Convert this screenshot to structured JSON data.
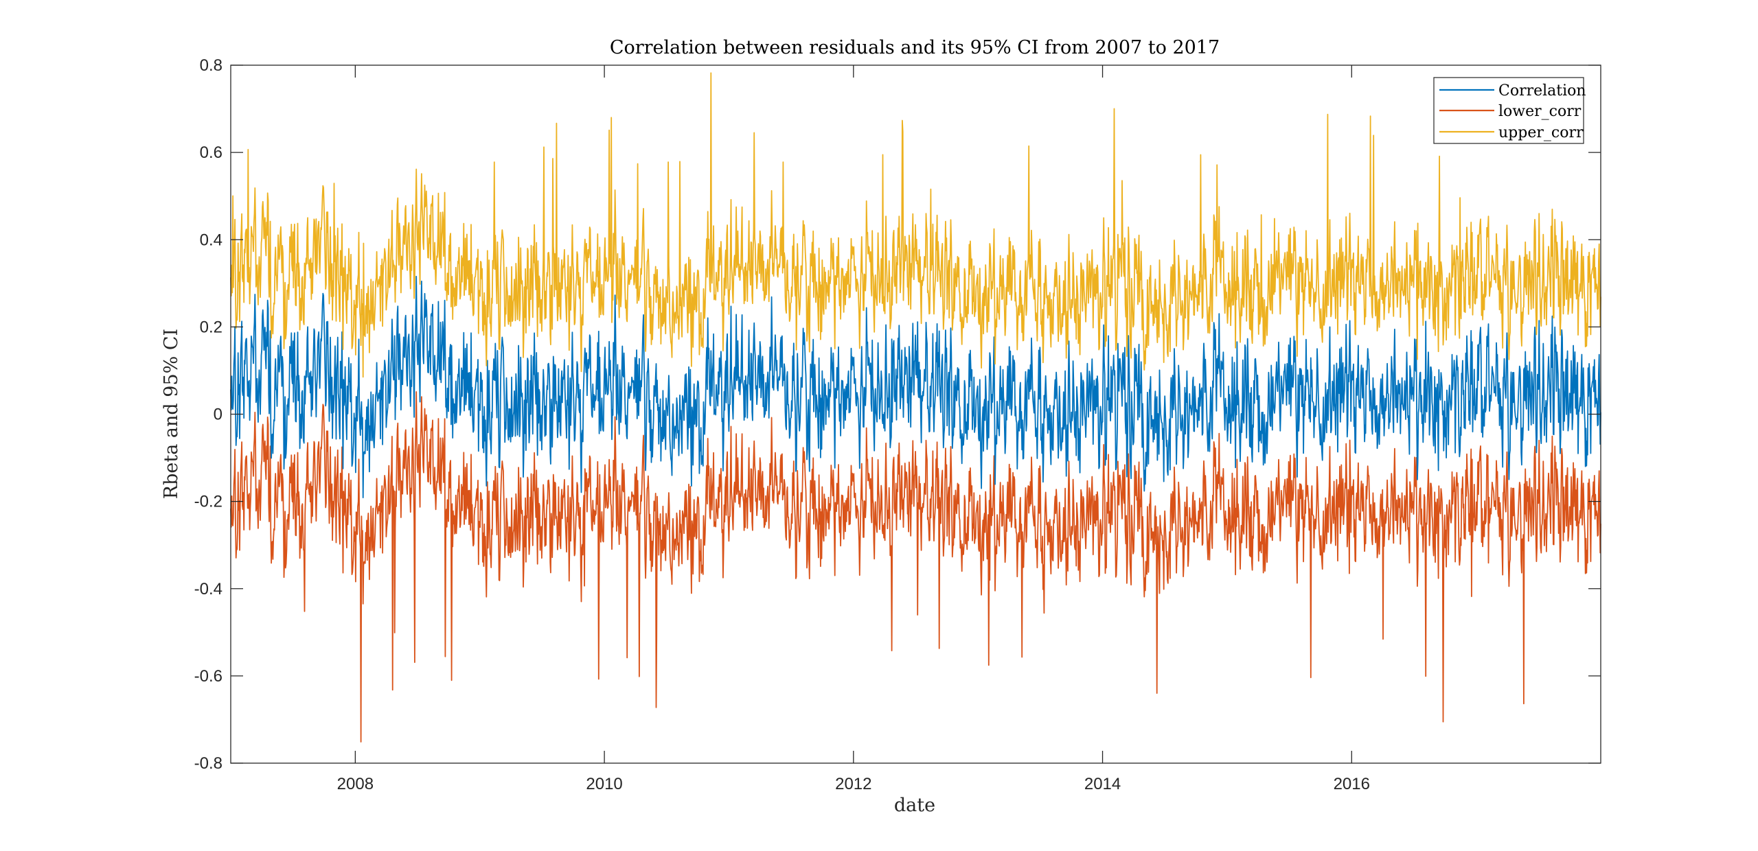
{
  "chart_data": {
    "type": "line",
    "title": "Correlation between residuals and its 95% CI from 2007 to 2017",
    "xlabel": "date",
    "ylabel": "Rbeta and 95% CI",
    "xlim": [
      2007.0,
      2018.0
    ],
    "ylim": [
      -0.8,
      0.8
    ],
    "xticks": [
      2008,
      2010,
      2012,
      2014,
      2016
    ],
    "xtick_labels": [
      "2008",
      "2010",
      "2012",
      "2014",
      "2016"
    ],
    "yticks": [
      -0.8,
      -0.6,
      -0.4,
      -0.2,
      0,
      0.2,
      0.4,
      0.6,
      0.8
    ],
    "ytick_labels": [
      "-0.8",
      "-0.6",
      "-0.4",
      "-0.2",
      "0",
      "0.2",
      "0.4",
      "0.6",
      "0.8"
    ],
    "grid": false,
    "legend_position": "top-right",
    "series": [
      {
        "name": "Correlation",
        "color": "#0072BD",
        "mean": 0.04,
        "typical_range": [
          -0.25,
          0.35
        ],
        "x": [
          2007.0,
          2007.25,
          2007.5,
          2007.75,
          2008.0,
          2008.25,
          2008.5,
          2008.75,
          2009.0,
          2009.25,
          2009.5,
          2009.75,
          2010.0,
          2010.25,
          2010.5,
          2010.75,
          2011.0,
          2011.25,
          2011.5,
          2011.75,
          2012.0,
          2012.25,
          2012.5,
          2012.75,
          2013.0,
          2013.25,
          2013.5,
          2013.75,
          2014.0,
          2014.25,
          2014.5,
          2014.75,
          2015.0,
          2015.25,
          2015.5,
          2015.75,
          2016.0,
          2016.25,
          2016.5,
          2016.75,
          2017.0,
          2017.25,
          2017.5,
          2017.75,
          2018.0
        ],
        "values": [
          0.02,
          0.1,
          0.05,
          0.12,
          -0.02,
          0.08,
          0.15,
          0.1,
          0.03,
          0.0,
          0.06,
          0.02,
          0.04,
          0.05,
          -0.02,
          0.01,
          0.06,
          0.09,
          0.04,
          0.03,
          0.05,
          0.07,
          0.1,
          0.06,
          0.02,
          0.04,
          0.01,
          -0.02,
          0.03,
          0.05,
          0.0,
          0.04,
          0.06,
          0.03,
          0.07,
          0.02,
          0.05,
          0.03,
          0.04,
          0.02,
          0.06,
          0.03,
          0.04,
          0.05,
          0.06
        ]
      },
      {
        "name": "lower_corr",
        "color": "#D95319",
        "mean": -0.22,
        "typical_range": [
          -0.5,
          0.05
        ],
        "x": [
          2007.0,
          2007.25,
          2007.5,
          2007.75,
          2008.0,
          2008.25,
          2008.5,
          2008.75,
          2009.0,
          2009.25,
          2009.5,
          2009.75,
          2010.0,
          2010.25,
          2010.5,
          2010.75,
          2011.0,
          2011.25,
          2011.5,
          2011.75,
          2012.0,
          2012.25,
          2012.5,
          2012.75,
          2013.0,
          2013.25,
          2013.5,
          2013.75,
          2014.0,
          2014.25,
          2014.5,
          2014.75,
          2015.0,
          2015.25,
          2015.5,
          2015.75,
          2016.0,
          2016.25,
          2016.5,
          2016.75,
          2017.0,
          2017.25,
          2017.5,
          2017.75,
          2018.0
        ],
        "values": [
          -0.25,
          -0.15,
          -0.22,
          -0.12,
          -0.28,
          -0.18,
          -0.1,
          -0.16,
          -0.24,
          -0.27,
          -0.2,
          -0.25,
          -0.22,
          -0.21,
          -0.28,
          -0.25,
          -0.2,
          -0.17,
          -0.22,
          -0.23,
          -0.21,
          -0.19,
          -0.16,
          -0.2,
          -0.24,
          -0.22,
          -0.25,
          -0.28,
          -0.23,
          -0.21,
          -0.26,
          -0.22,
          -0.2,
          -0.23,
          -0.19,
          -0.24,
          -0.21,
          -0.23,
          -0.22,
          -0.24,
          -0.2,
          -0.23,
          -0.22,
          -0.21,
          -0.2
        ]
      },
      {
        "name": "upper_corr",
        "color": "#EDB120",
        "mean": 0.3,
        "typical_range": [
          0.05,
          0.6
        ],
        "x": [
          2007.0,
          2007.25,
          2007.5,
          2007.75,
          2008.0,
          2008.25,
          2008.5,
          2008.75,
          2009.0,
          2009.25,
          2009.5,
          2009.75,
          2010.0,
          2010.25,
          2010.5,
          2010.75,
          2011.0,
          2011.25,
          2011.5,
          2011.75,
          2012.0,
          2012.25,
          2012.5,
          2012.75,
          2013.0,
          2013.25,
          2013.5,
          2013.75,
          2014.0,
          2014.25,
          2014.5,
          2014.75,
          2015.0,
          2015.25,
          2015.5,
          2015.75,
          2016.0,
          2016.25,
          2016.5,
          2016.75,
          2017.0,
          2017.25,
          2017.5,
          2017.75,
          2018.0
        ],
        "values": [
          0.28,
          0.36,
          0.31,
          0.38,
          0.24,
          0.34,
          0.41,
          0.36,
          0.29,
          0.26,
          0.32,
          0.28,
          0.3,
          0.31,
          0.24,
          0.27,
          0.32,
          0.35,
          0.3,
          0.29,
          0.31,
          0.33,
          0.36,
          0.32,
          0.28,
          0.3,
          0.27,
          0.24,
          0.29,
          0.31,
          0.26,
          0.3,
          0.32,
          0.29,
          0.33,
          0.28,
          0.31,
          0.29,
          0.3,
          0.28,
          0.32,
          0.29,
          0.3,
          0.31,
          0.32
        ]
      }
    ]
  }
}
